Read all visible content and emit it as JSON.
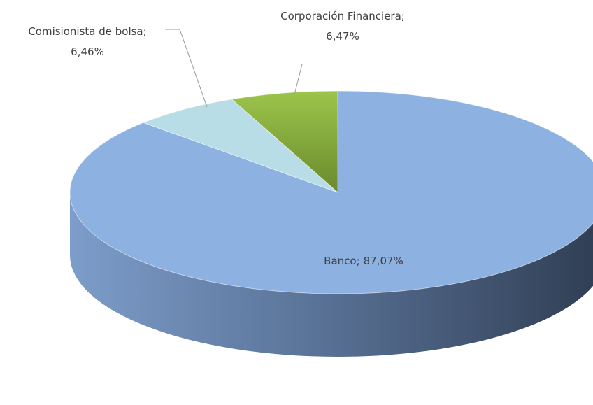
{
  "chart_data": {
    "type": "pie3d",
    "categories": [
      "Banco",
      "Comisionista de bolsa",
      "Corporación Financiera"
    ],
    "values": [
      87.07,
      6.46,
      6.47
    ],
    "value_labels": [
      "87,07%",
      "6,46%",
      "6,47%"
    ],
    "label_separator": ";",
    "colors": [
      "#8db1e1",
      "#b8dde7",
      "#94bd45"
    ]
  }
}
